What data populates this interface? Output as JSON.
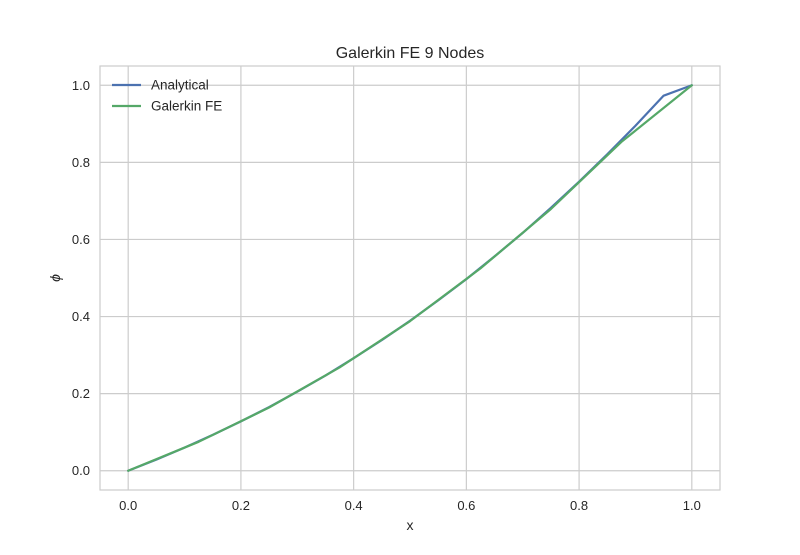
{
  "chart_data": {
    "type": "line",
    "title": "Galerkin FE 9 Nodes",
    "xlabel": "x",
    "ylabel": "ϕ",
    "xlim": [
      -0.05,
      1.05
    ],
    "ylim": [
      -0.05,
      1.05
    ],
    "xticks": [
      0.0,
      0.2,
      0.4,
      0.6,
      0.8,
      1.0
    ],
    "xtick_labels": [
      "0.0",
      "0.2",
      "0.4",
      "0.6",
      "0.8",
      "1.0"
    ],
    "yticks": [
      0.0,
      0.2,
      0.4,
      0.6,
      0.8,
      1.0
    ],
    "ytick_labels": [
      "0.0",
      "0.2",
      "0.4",
      "0.6",
      "0.8",
      "1.0"
    ],
    "grid": true,
    "legend_position": "top-left",
    "series": [
      {
        "name": "Analytical",
        "color": "#4c72b0",
        "x": [
          0.0,
          0.05,
          0.1,
          0.15,
          0.2,
          0.25,
          0.3,
          0.35,
          0.4,
          0.45,
          0.5,
          0.55,
          0.6,
          0.65,
          0.7,
          0.75,
          0.8,
          0.85,
          0.9,
          0.95,
          1.0
        ],
        "y": [
          0.0,
          0.029,
          0.06,
          0.093,
          0.128,
          0.165,
          0.205,
          0.247,
          0.292,
          0.339,
          0.389,
          0.442,
          0.497,
          0.556,
          0.617,
          0.682,
          0.75,
          0.821,
          0.895,
          0.973,
          1.0
        ]
      },
      {
        "name": "Galerkin FE",
        "color": "#55a868",
        "x": [
          0.0,
          0.125,
          0.25,
          0.375,
          0.5,
          0.625,
          0.75,
          0.875,
          1.0
        ],
        "y": [
          0.0,
          0.075,
          0.164,
          0.268,
          0.388,
          0.525,
          0.679,
          0.853,
          1.0
        ]
      }
    ]
  }
}
